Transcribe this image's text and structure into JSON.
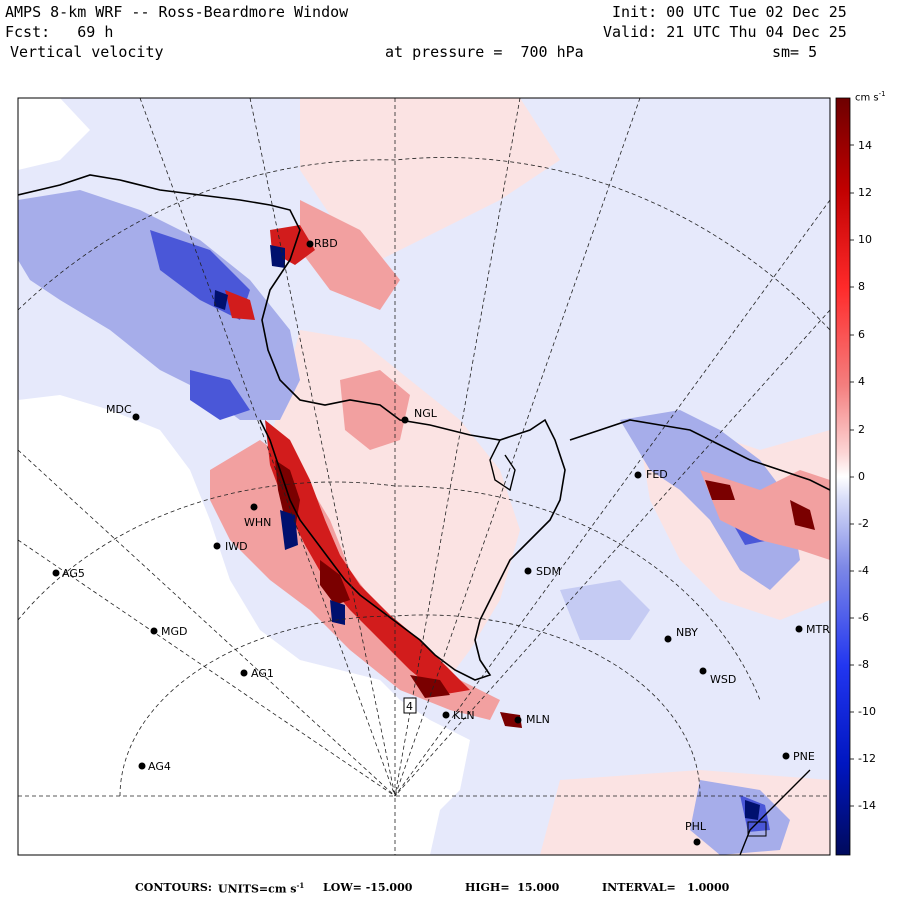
{
  "header": {
    "title": "AMPS 8-km WRF -- Ross-Beardmore Window",
    "init": "Init: 00 UTC Tue 02 Dec 25",
    "fcst": "Fcst:   69 h",
    "valid": "Valid: 21 UTC Thu 04 Dec 25",
    "variable": "Vertical velocity",
    "pressure": "at pressure =  700 hPa",
    "smoothing": "sm= 5"
  },
  "colorbar": {
    "units": "cm s",
    "units_exp": "-1",
    "ticks": [
      "14",
      "12",
      "10",
      "8",
      "6",
      "4",
      "2",
      "0",
      "-2",
      "-4",
      "-6",
      "-8",
      "-10",
      "-12",
      "-14"
    ],
    "colors": {
      "dark_red": "#7a0000",
      "red": "#e01010",
      "pink": "#f4a8a8",
      "light_pink": "#fde6e6",
      "white": "#ffffff",
      "light_blue": "#e4e8fb",
      "blue_mid": "#8d96e6",
      "blue": "#1a2fe0",
      "dark_blue": "#00106e"
    }
  },
  "stations": [
    {
      "id": "RBD",
      "label": "RBD"
    },
    {
      "id": "MDC",
      "label": "MDC"
    },
    {
      "id": "NGL",
      "label": "NGL"
    },
    {
      "id": "FED",
      "label": "FED"
    },
    {
      "id": "WHN",
      "label": "WHN"
    },
    {
      "id": "IWD",
      "label": "IWD"
    },
    {
      "id": "AG5",
      "label": "AG5"
    },
    {
      "id": "SDM",
      "label": "SDM"
    },
    {
      "id": "MGD",
      "label": "MGD"
    },
    {
      "id": "NBY",
      "label": "NBY"
    },
    {
      "id": "MTR",
      "label": "MTR"
    },
    {
      "id": "AG1",
      "label": "AG1"
    },
    {
      "id": "WSD",
      "label": "WSD"
    },
    {
      "id": "KLN",
      "label": "KLN"
    },
    {
      "id": "MLN",
      "label": "MLN"
    },
    {
      "id": "AG4",
      "label": "AG4"
    },
    {
      "id": "PNE",
      "label": "PNE"
    },
    {
      "id": "PHL",
      "label": "PHL"
    }
  ],
  "markers": {
    "box4": "4"
  },
  "footer": {
    "contours_label": "CONTOURS:",
    "units_label": "UNITS=cm s",
    "units_exp": "-1",
    "low": "LOW= -15.000",
    "high": "HIGH=  15.000",
    "interval": "INTERVAL=   1.0000"
  }
}
